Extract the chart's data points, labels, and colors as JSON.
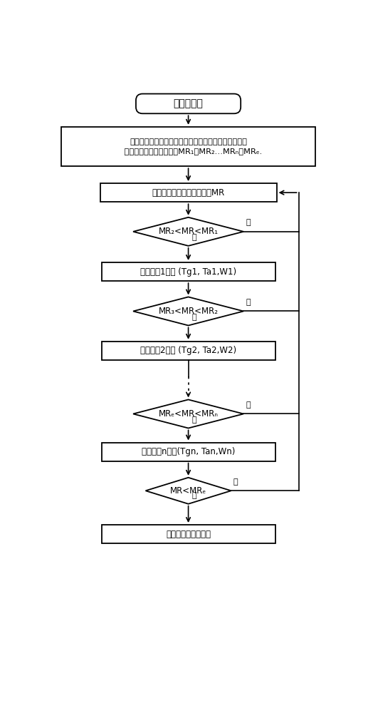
{
  "bg_color": "#ffffff",
  "title": "系统初始化",
  "init_line1": "设定初始含水率、筒壁温度、热风温度、热风流量、微",
  "init_line2": "    波功率及各工段的水分比MR₁，MR₂…MRₙ，MRₑ.",
  "detect_box": "检测物料质量并计算水分比MR",
  "diamond1_text": "MR₂<MR<MR₁",
  "process1_text": "执行工段1操作 (Tg1, Ta1,W1)",
  "diamond2_text": "MR₃<MR<MR₂",
  "process2_text": "执行工段2操作 (Tg2, Ta2,W2)",
  "diamond3_text": "MRₑ<MR<MRₙ",
  "process3_text": "执行工段n操作(Tgn, Tan,Wn)",
  "diamond4_text": "MR<MRₑ",
  "end_box": "停止干燥，开始卸料",
  "yes_label": "是",
  "no_label": "否"
}
